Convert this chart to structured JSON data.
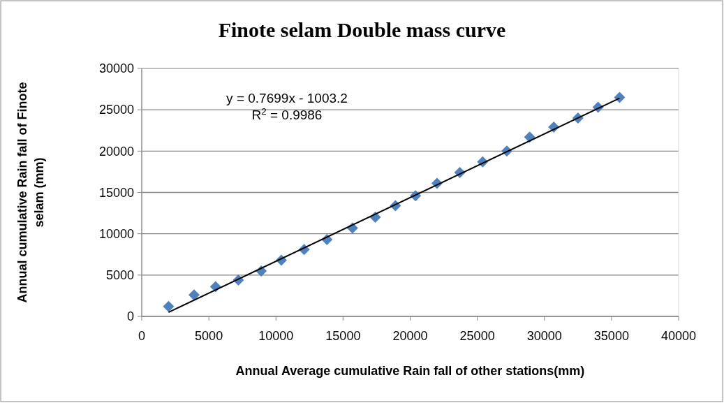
{
  "chart_data": {
    "type": "scatter",
    "title": "Finote selam Double mass curve",
    "xlabel": "Annual  Average cumulative Rain fall of other stations(mm)",
    "ylabel": "Annual cumulative Rain fall of Finote selam (mm)",
    "xlim": [
      0,
      40000
    ],
    "xticks": [
      0,
      5000,
      10000,
      15000,
      20000,
      25000,
      30000,
      35000,
      40000
    ],
    "ylim": [
      0,
      30000
    ],
    "yticks": [
      0,
      5000,
      10000,
      15000,
      20000,
      25000,
      30000
    ],
    "grid": "y",
    "series": [
      {
        "color": "#4f81bd",
        "marker": "diamond",
        "x": [
          2000,
          3900,
          5500,
          7200,
          8900,
          10400,
          12100,
          13800,
          15700,
          17400,
          18900,
          20400,
          22000,
          23700,
          25400,
          27200,
          28900,
          30700,
          32500,
          34000,
          35600
        ],
        "values": [
          1200,
          2600,
          3600,
          4400,
          5500,
          6800,
          8100,
          9300,
          10700,
          12000,
          13400,
          14600,
          16100,
          17400,
          18700,
          20000,
          21700,
          22900,
          24000,
          25300,
          26500
        ]
      },
      {
        "type": "line",
        "color": "#000000",
        "marker": "none",
        "line_style": "solid",
        "x": [
          2000,
          35600
        ],
        "values": [
          500,
          26400
        ]
      }
    ],
    "annotations": [
      "y = 0.7699x - 1003.2",
      "R$^{2}$ = 0.9986"
    ]
  }
}
